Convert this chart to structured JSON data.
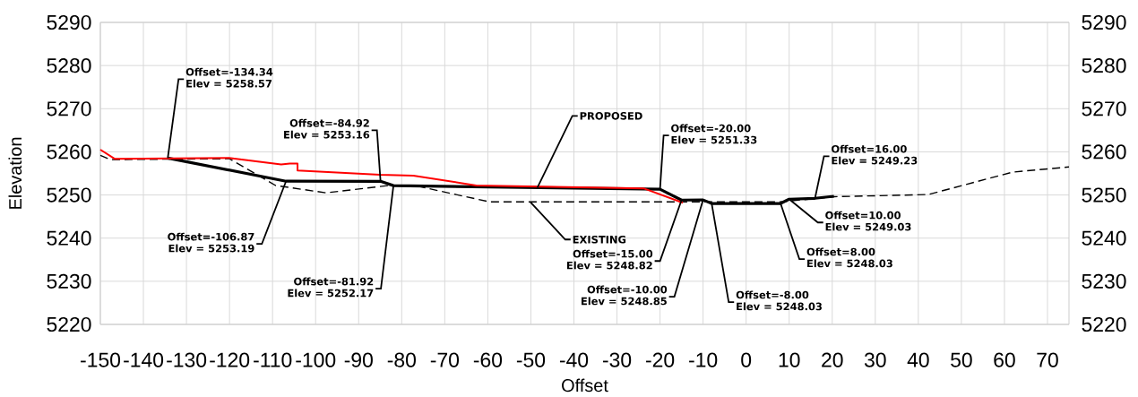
{
  "chart_data": {
    "type": "line",
    "xlabel": "Offset",
    "ylabel": "Elevation",
    "xlim": [
      -150,
      75
    ],
    "xticks": [
      -150,
      -140,
      -130,
      -120,
      -110,
      -100,
      -90,
      -80,
      -70,
      -60,
      -50,
      -40,
      -30,
      -20,
      -10,
      0,
      10,
      20,
      30,
      40,
      50,
      60,
      70
    ],
    "ylim": [
      5220,
      5290
    ],
    "yticks": [
      5220,
      5230,
      5240,
      5250,
      5260,
      5270,
      5280,
      5290
    ],
    "y2lim": [
      5220,
      5290
    ],
    "y2ticks": [
      5220,
      5230,
      5240,
      5250,
      5260,
      5270,
      5280,
      5290
    ],
    "grid": true,
    "marker": "none",
    "series": [
      {
        "color": "#ff0000",
        "x": [
          -150,
          -146.7,
          -120.1,
          -108,
          -106,
          -104.2,
          -104.2,
          -85,
          -77.3,
          -62.7,
          -23.7,
          -14.7
        ],
        "values": [
          5260.5,
          5258.4,
          5258.6,
          5257.1,
          5257.3,
          5257.3,
          5255.7,
          5254.7,
          5254.5,
          5252.2,
          5251.5,
          5248.2
        ]
      },
      {
        "name": "PROPOSED",
        "color": "#000000",
        "x": [
          -134.34,
          -106.87,
          -84.92,
          -81.92,
          -20,
          -15,
          -10,
          -8,
          8,
          10,
          16,
          20.4
        ],
        "values": [
          5258.57,
          5253.19,
          5253.16,
          5252.17,
          5251.33,
          5248.82,
          5248.85,
          5248.03,
          5248.03,
          5249.03,
          5249.23,
          5249.7
        ]
      },
      {
        "name": "EXISTING",
        "color": "#000000",
        "line_style": "dashed",
        "x": [
          -150,
          -147.7,
          -120,
          -109.3,
          -97.6,
          -83,
          -77,
          -59.6,
          8,
          20.4,
          42.3,
          61.9,
          75
        ],
        "values": [
          5259.2,
          5258.2,
          5258.4,
          5252.2,
          5250.5,
          5252.2,
          5252.2,
          5248.4,
          5248.4,
          5249.6,
          5250.1,
          5255.3,
          5256.5
        ]
      }
    ],
    "annotations": [
      {
        "text": "Offset=-134.34",
        "x": -134.34,
        "y": 5258.57
      },
      {
        "text": "Elev = 5258.57",
        "x": -134.34,
        "y": 5258.57
      },
      {
        "text": "Offset=-106.87",
        "x": -106.87,
        "y": 5253.19
      },
      {
        "text": "Elev = 5253.19",
        "x": -106.87,
        "y": 5253.19
      },
      {
        "text": "Offset=-84.92",
        "x": -84.92,
        "y": 5253.16
      },
      {
        "text": "Elev = 5253.16",
        "x": -84.92,
        "y": 5253.16
      },
      {
        "text": "Offset=-81.92",
        "x": -81.92,
        "y": 5252.17
      },
      {
        "text": "Elev = 5252.17",
        "x": -81.92,
        "y": 5252.17
      },
      {
        "text": "Offset=-20.00",
        "x": -20,
        "y": 5251.33
      },
      {
        "text": "Elev = 5251.33",
        "x": -20,
        "y": 5251.33
      },
      {
        "text": "Offset=-15.00",
        "x": -15,
        "y": 5248.82
      },
      {
        "text": "Elev = 5248.82",
        "x": -15,
        "y": 5248.82
      },
      {
        "text": "Offset=-10.00",
        "x": -10,
        "y": 5248.85
      },
      {
        "text": "Elev = 5248.85",
        "x": -10,
        "y": 5248.85
      },
      {
        "text": "Offset=-8.00",
        "x": -8,
        "y": 5248.03
      },
      {
        "text": "Elev = 5248.03",
        "x": -8,
        "y": 5248.03
      },
      {
        "text": "Offset=8.00",
        "x": 8,
        "y": 5248.03
      },
      {
        "text": "Elev = 5248.03",
        "x": 8,
        "y": 5248.03
      },
      {
        "text": "Offset=10.00",
        "x": 10,
        "y": 5249.03
      },
      {
        "text": "Elev = 5249.03",
        "x": 10,
        "y": 5249.03
      },
      {
        "text": "Offset=16.00",
        "x": 16,
        "y": 5249.23
      },
      {
        "text": "Elev = 5249.23",
        "x": 16,
        "y": 5249.23
      }
    ]
  }
}
